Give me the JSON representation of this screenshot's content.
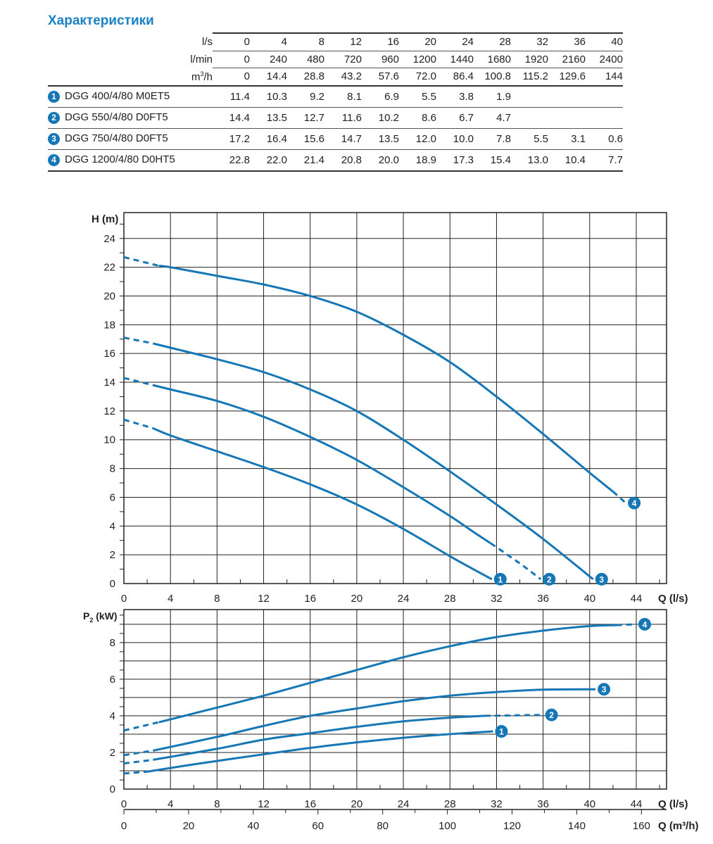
{
  "title": "Характеристики",
  "table": {
    "header_rows": [
      {
        "unit": "l/s",
        "values": [
          "0",
          "4",
          "8",
          "12",
          "16",
          "20",
          "24",
          "28",
          "32",
          "36",
          "40"
        ]
      },
      {
        "unit": "l/min",
        "values": [
          "0",
          "240",
          "480",
          "720",
          "960",
          "1200",
          "1440",
          "1680",
          "1920",
          "2160",
          "2400"
        ]
      },
      {
        "unit": "m3/h",
        "unit_base": "m",
        "unit_sup": "3",
        "unit_tail": "/h",
        "values": [
          "0",
          "14.4",
          "28.8",
          "43.2",
          "57.6",
          "72.0",
          "86.4",
          "100.8",
          "115.2",
          "129.6",
          "144"
        ]
      }
    ],
    "models": [
      {
        "num": "1",
        "name": "DGG 400/4/80 M0ET5",
        "values": [
          "11.4",
          "10.3",
          "9.2",
          "8.1",
          "6.9",
          "5.5",
          "3.8",
          "1.9",
          "",
          "",
          ""
        ]
      },
      {
        "num": "2",
        "name": "DGG 550/4/80 D0FT5",
        "values": [
          "14.4",
          "13.5",
          "12.7",
          "11.6",
          "10.2",
          "8.6",
          "6.7",
          "4.7",
          "",
          "",
          ""
        ]
      },
      {
        "num": "3",
        "name": "DGG 750/4/80 D0FT5",
        "values": [
          "17.2",
          "16.4",
          "15.6",
          "14.7",
          "13.5",
          "12.0",
          "10.0",
          "7.8",
          "5.5",
          "3.1",
          "0.6"
        ]
      },
      {
        "num": "4",
        "name": "DGG 1200/4/80 D0HT5",
        "values": [
          "22.8",
          "22.0",
          "21.4",
          "20.8",
          "20.0",
          "18.9",
          "17.3",
          "15.4",
          "13.0",
          "10.4",
          "7.7"
        ]
      }
    ]
  },
  "colors": {
    "curve": "#1577b5",
    "title": "#1a82c4",
    "grid": "#222222"
  },
  "chart_data": [
    {
      "type": "line",
      "ylabel": "H (m)",
      "xlabel": "Q (l/s)",
      "xlim": [
        0,
        46.6
      ],
      "ylim": [
        0,
        25.8
      ],
      "grid": true,
      "xticks": [
        0,
        4,
        8,
        12,
        16,
        20,
        24,
        28,
        32,
        36,
        40,
        44
      ],
      "yticks": [
        0,
        2,
        4,
        6,
        8,
        10,
        12,
        14,
        16,
        18,
        20,
        22,
        24
      ],
      "series": [
        {
          "name": "1",
          "segments": [
            {
              "style": "dashed",
              "points": [
                [
                  0,
                  11.4
                ],
                [
                  2.5,
                  10.8
                ]
              ]
            },
            {
              "style": "solid",
              "points": [
                [
                  2.5,
                  10.8
                ],
                [
                  4,
                  10.3
                ],
                [
                  8,
                  9.2
                ],
                [
                  12,
                  8.1
                ],
                [
                  16,
                  6.9
                ],
                [
                  20,
                  5.5
                ],
                [
                  24,
                  3.8
                ],
                [
                  28,
                  1.9
                ],
                [
                  30,
                  1.0
                ],
                [
                  31.6,
                  0.3
                ]
              ]
            }
          ]
        },
        {
          "name": "2",
          "segments": [
            {
              "style": "dashed",
              "points": [
                [
                  0,
                  14.3
                ],
                [
                  2.5,
                  13.8
                ]
              ]
            },
            {
              "style": "solid",
              "points": [
                [
                  2.5,
                  13.8
                ],
                [
                  4,
                  13.5
                ],
                [
                  8,
                  12.7
                ],
                [
                  12,
                  11.6
                ],
                [
                  16,
                  10.2
                ],
                [
                  20,
                  8.6
                ],
                [
                  24,
                  6.7
                ],
                [
                  28,
                  4.7
                ],
                [
                  30,
                  3.6
                ],
                [
                  31.5,
                  2.8
                ]
              ]
            },
            {
              "style": "dashed",
              "points": [
                [
                  31.5,
                  2.8
                ],
                [
                  34,
                  1.4
                ],
                [
                  35.8,
                  0.3
                ]
              ]
            }
          ]
        },
        {
          "name": "3",
          "segments": [
            {
              "style": "dashed",
              "points": [
                [
                  0,
                  17.1
                ],
                [
                  2.5,
                  16.7
                ]
              ]
            },
            {
              "style": "solid",
              "points": [
                [
                  2.5,
                  16.7
                ],
                [
                  4,
                  16.4
                ],
                [
                  8,
                  15.6
                ],
                [
                  12,
                  14.7
                ],
                [
                  16,
                  13.5
                ],
                [
                  20,
                  12.0
                ],
                [
                  24,
                  10.0
                ],
                [
                  28,
                  7.8
                ],
                [
                  32,
                  5.5
                ],
                [
                  36,
                  3.1
                ],
                [
                  40.3,
                  0.3
                ]
              ]
            }
          ]
        },
        {
          "name": "4",
          "segments": [
            {
              "style": "dashed",
              "points": [
                [
                  0,
                  22.7
                ],
                [
                  3,
                  22.1
                ]
              ]
            },
            {
              "style": "solid",
              "points": [
                [
                  3,
                  22.1
                ],
                [
                  4,
                  22.0
                ],
                [
                  8,
                  21.4
                ],
                [
                  12,
                  20.8
                ],
                [
                  16,
                  20.0
                ],
                [
                  20,
                  18.9
                ],
                [
                  24,
                  17.3
                ],
                [
                  28,
                  15.4
                ],
                [
                  32,
                  13.0
                ],
                [
                  36,
                  10.4
                ],
                [
                  40,
                  7.7
                ],
                [
                  42,
                  6.4
                ]
              ]
            },
            {
              "style": "dashed",
              "points": [
                [
                  42,
                  6.4
                ],
                [
                  43.1,
                  5.6
                ]
              ]
            }
          ]
        }
      ]
    },
    {
      "type": "line",
      "ylabel": "P",
      "ylabel_sub": "2",
      "ylabel_unit": " (kW)",
      "xlabel": "Q (l/s)",
      "x2label": "Q (m³/h)",
      "xlim": [
        0,
        46.6
      ],
      "ylim": [
        0,
        9.8
      ],
      "grid": true,
      "xticks": [
        0,
        4,
        8,
        12,
        16,
        20,
        24,
        28,
        32,
        36,
        40,
        44
      ],
      "x2ticks": [
        0,
        20,
        40,
        60,
        80,
        100,
        120,
        140,
        160
      ],
      "yticks": [
        0,
        2,
        4,
        6,
        8
      ],
      "series": [
        {
          "name": "1",
          "segments": [
            {
              "style": "dashed",
              "points": [
                [
                  0,
                  0.85
                ],
                [
                  2,
                  0.95
                ]
              ]
            },
            {
              "style": "solid",
              "points": [
                [
                  2,
                  0.95
                ],
                [
                  6,
                  1.35
                ],
                [
                  12,
                  1.9
                ],
                [
                  16,
                  2.25
                ],
                [
                  20,
                  2.55
                ],
                [
                  24,
                  2.8
                ],
                [
                  28,
                  3.0
                ],
                [
                  31.7,
                  3.15
                ]
              ]
            }
          ]
        },
        {
          "name": "2",
          "segments": [
            {
              "style": "dashed",
              "points": [
                [
                  0,
                  1.4
                ],
                [
                  2.5,
                  1.6
                ]
              ]
            },
            {
              "style": "solid",
              "points": [
                [
                  2.5,
                  1.6
                ],
                [
                  8,
                  2.2
                ],
                [
                  12,
                  2.7
                ],
                [
                  16,
                  3.05
                ],
                [
                  20,
                  3.4
                ],
                [
                  24,
                  3.7
                ],
                [
                  28,
                  3.9
                ],
                [
                  31,
                  4.0
                ]
              ]
            },
            {
              "style": "dashed",
              "points": [
                [
                  31,
                  4.0
                ],
                [
                  36,
                  4.05
                ]
              ]
            }
          ]
        },
        {
          "name": "3",
          "segments": [
            {
              "style": "dashed",
              "points": [
                [
                  0,
                  1.85
                ],
                [
                  2.5,
                  2.1
                ]
              ]
            },
            {
              "style": "solid",
              "points": [
                [
                  2.5,
                  2.1
                ],
                [
                  8,
                  2.85
                ],
                [
                  12,
                  3.45
                ],
                [
                  16,
                  4.0
                ],
                [
                  20,
                  4.4
                ],
                [
                  24,
                  4.8
                ],
                [
                  28,
                  5.1
                ],
                [
                  32,
                  5.3
                ],
                [
                  36,
                  5.43
                ],
                [
                  40.5,
                  5.45
                ]
              ]
            }
          ]
        },
        {
          "name": "4",
          "segments": [
            {
              "style": "dashed",
              "points": [
                [
                  0,
                  3.2
                ],
                [
                  3,
                  3.65
                ]
              ]
            },
            {
              "style": "solid",
              "points": [
                [
                  3,
                  3.65
                ],
                [
                  8,
                  4.45
                ],
                [
                  12,
                  5.1
                ],
                [
                  16,
                  5.8
                ],
                [
                  20,
                  6.5
                ],
                [
                  24,
                  7.2
                ],
                [
                  28,
                  7.8
                ],
                [
                  32,
                  8.3
                ],
                [
                  36,
                  8.65
                ],
                [
                  40,
                  8.9
                ],
                [
                  42.3,
                  8.95
                ]
              ]
            },
            {
              "style": "dashed",
              "points": [
                [
                  42.3,
                  8.95
                ],
                [
                  44,
                  9.0
                ]
              ]
            }
          ]
        }
      ]
    }
  ]
}
